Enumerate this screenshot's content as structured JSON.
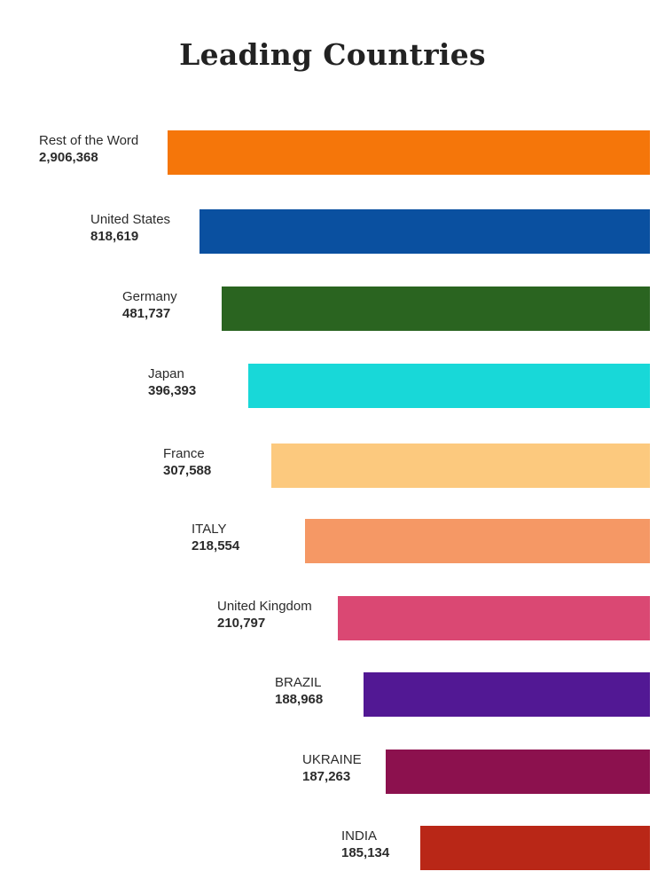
{
  "chart_data": {
    "type": "bar",
    "orientation": "horizontal",
    "title": "Leading Countries",
    "categories": [
      "Rest of the Word",
      "United States",
      "Germany",
      "Japan",
      "France",
      "ITALY",
      "United Kingdom",
      "BRAZIL",
      "UKRAINE",
      "INDIA"
    ],
    "value_labels": [
      "2,906,368",
      "818,619",
      "481,737",
      "396,393",
      "307,588",
      "218,554",
      "210,797",
      "188,968",
      "187,263",
      "185,134"
    ],
    "values": [
      2906368,
      818619,
      481737,
      396393,
      307588,
      218554,
      210797,
      188968,
      187263,
      185134
    ],
    "colors": [
      "#f5760a",
      "#0a50a0",
      "#2a6420",
      "#18d8d8",
      "#fcc97e",
      "#f59865",
      "#da4873",
      "#521894",
      "#8c114e",
      "#b92717"
    ],
    "grid": false,
    "legend": "none"
  }
}
